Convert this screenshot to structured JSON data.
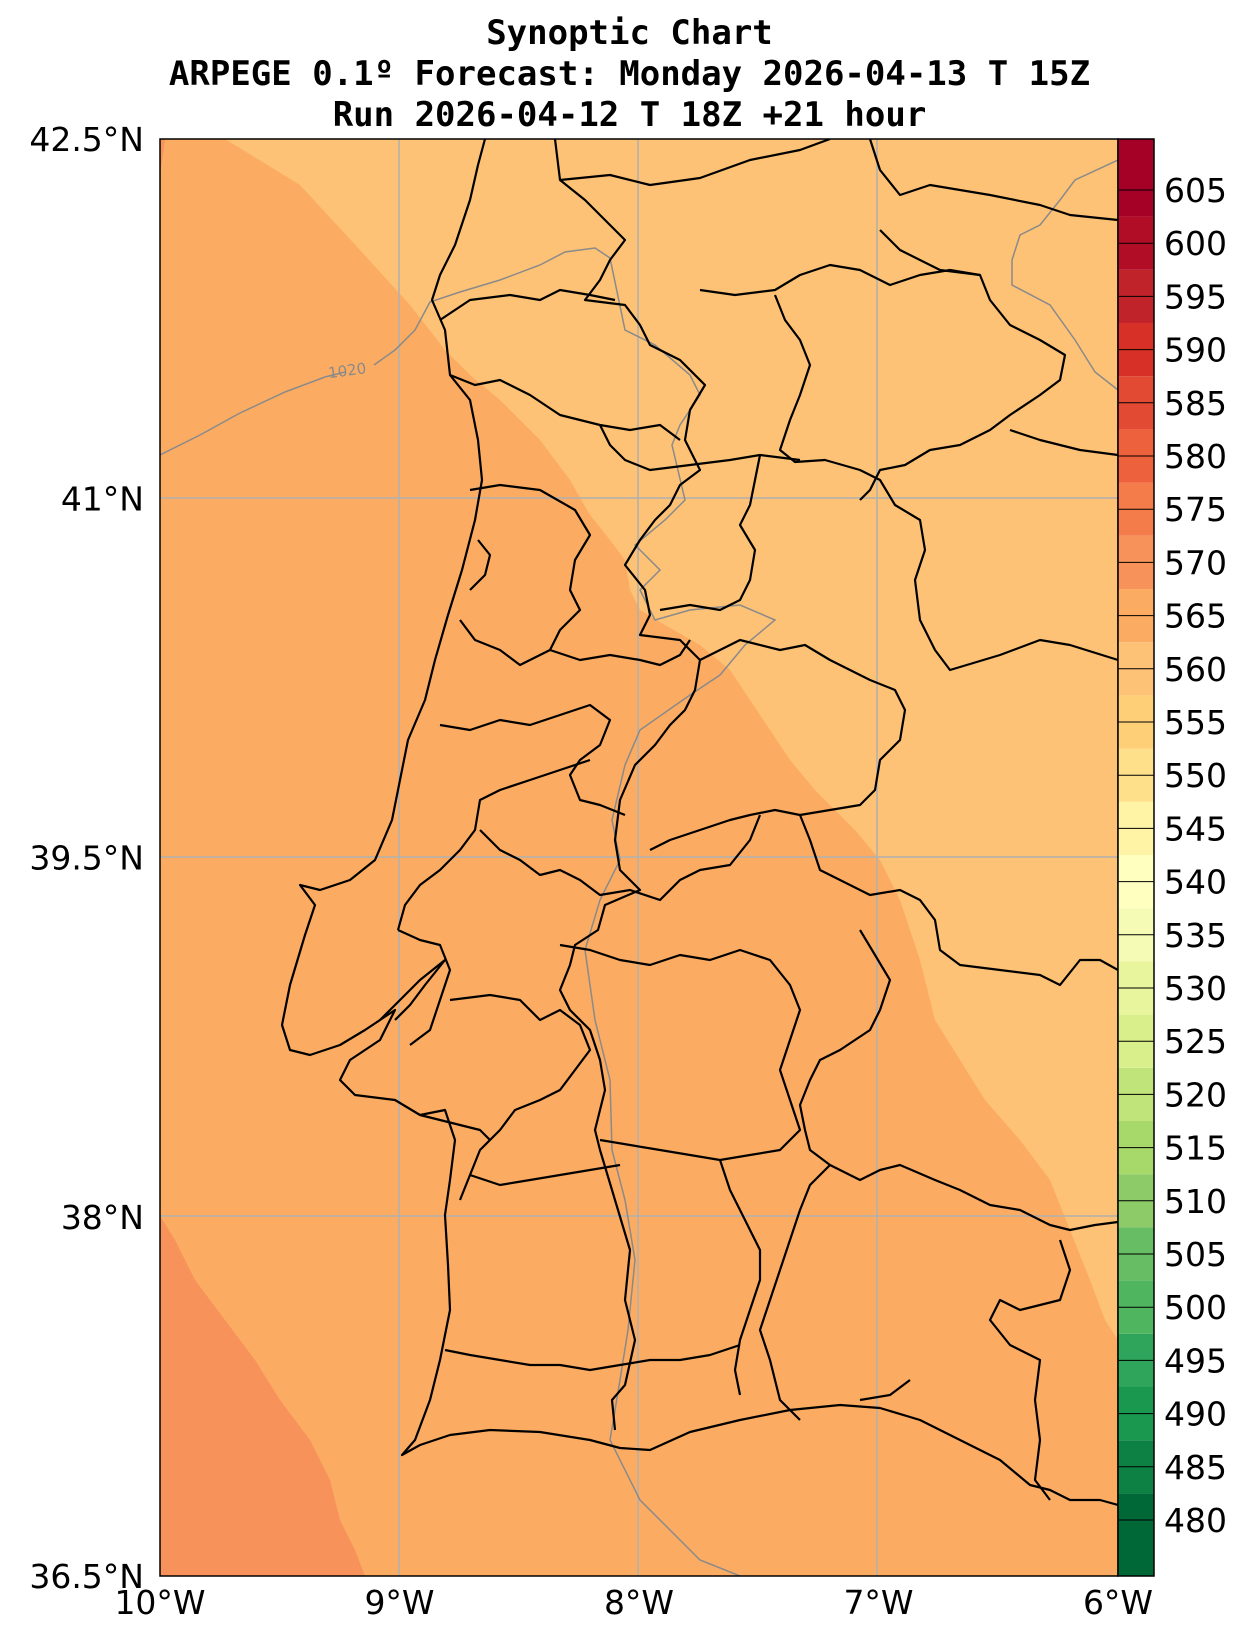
{
  "title": {
    "line1": "Synoptic Chart",
    "line2": "ARPEGE 0.1º Forecast: Monday 2026-04-13 T 15Z",
    "line3": "Run 2026-04-12 T 18Z +21 hour"
  },
  "map": {
    "lon_range": [
      -10,
      -6
    ],
    "lat_range": [
      36.5,
      42.5
    ],
    "lon_ticks": [
      -10,
      -9,
      -8,
      -7,
      -6
    ],
    "lon_tick_labels": [
      "10°W",
      "9°W",
      "8°W",
      "7°W",
      "6°W"
    ],
    "lat_ticks": [
      36.5,
      38,
      39.5,
      41,
      42.5
    ],
    "lat_tick_labels": [
      "36.5°N",
      "38°N",
      "39.5°N",
      "41°N",
      "42.5°N"
    ],
    "gridlines": true,
    "isobar_label": "1020",
    "fill_zones": [
      {
        "range": "570-575",
        "color": "#f7925a"
      },
      {
        "range": "565-570",
        "color": "#fbac62"
      },
      {
        "range": "560-565",
        "color": "#fdc275"
      }
    ]
  },
  "colorbar": {
    "labels": [
      "480",
      "485",
      "490",
      "495",
      "500",
      "505",
      "510",
      "515",
      "520",
      "525",
      "530",
      "535",
      "540",
      "545",
      "550",
      "555",
      "560",
      "565",
      "570",
      "575",
      "580",
      "585",
      "590",
      "595",
      "600",
      "605"
    ],
    "colors": [
      "#006837",
      "#0d8044",
      "#1a9850",
      "#2ea55a",
      "#4fb55f",
      "#66bd63",
      "#8ccb67",
      "#a6d96a",
      "#c0e47a",
      "#d9ef8b",
      "#e8f59c",
      "#f5fbb5",
      "#ffffbf",
      "#fff3a6",
      "#fee08b",
      "#fecf77",
      "#fdc275",
      "#fbac62",
      "#f7925a",
      "#f47c4a",
      "#ee613d",
      "#e34a33",
      "#d73027",
      "#c1232a",
      "#b10d26",
      "#a50026"
    ]
  }
}
